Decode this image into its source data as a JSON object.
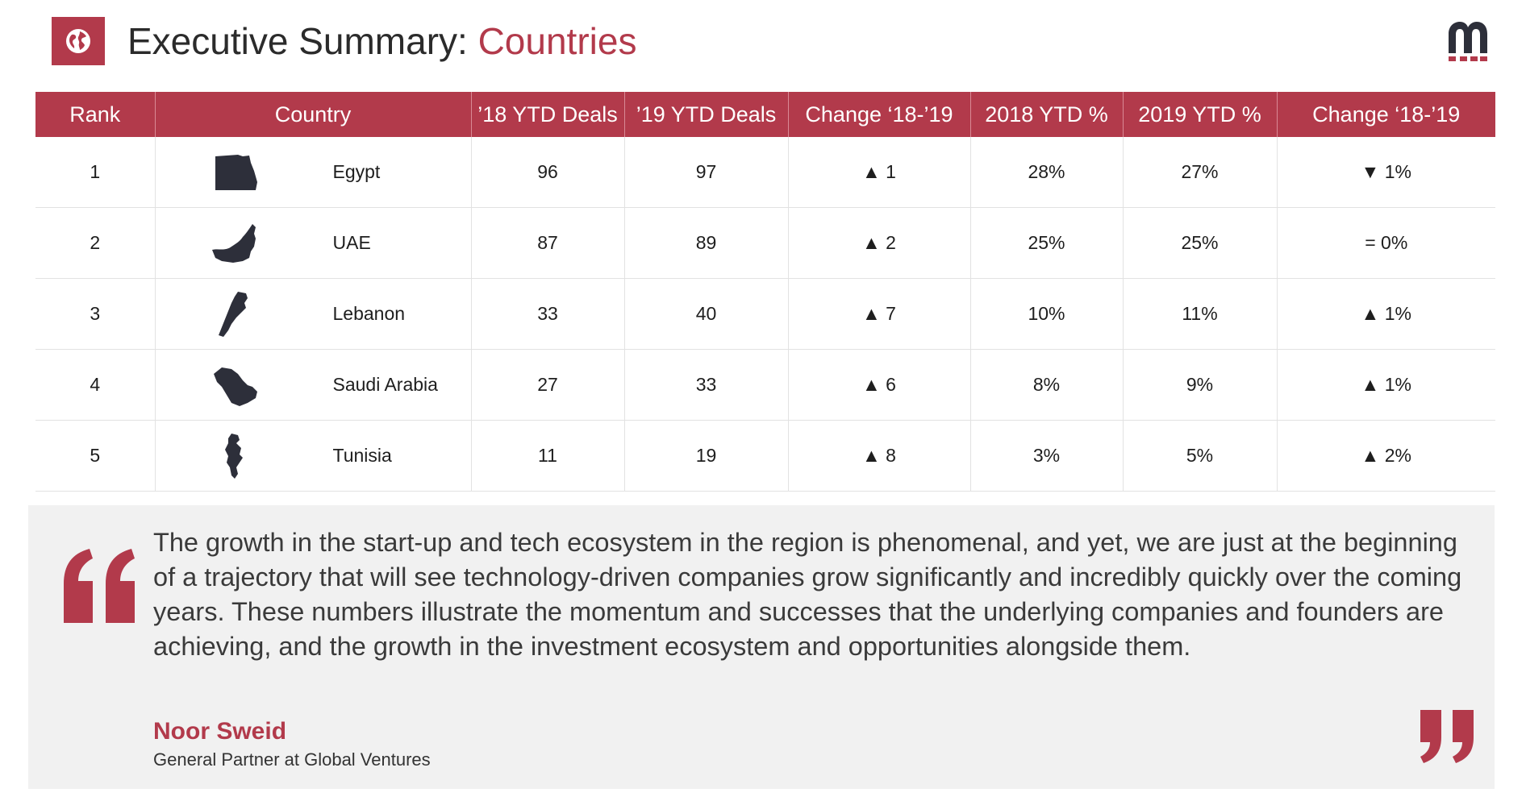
{
  "header": {
    "title_main": "Executive Summary: ",
    "title_accent": "Countries",
    "icon": "globe-icon",
    "accent_color": "#b23a4b"
  },
  "logo": {
    "icon": "brand-m-logo"
  },
  "table": {
    "columns": [
      "Rank",
      "Country",
      "’18 YTD Deals",
      "’19 YTD Deals",
      "Change ‘18-’19",
      "2018 YTD %",
      "2019 YTD %",
      "Change ‘18-’19"
    ],
    "rows": [
      {
        "rank": "1",
        "country": "Egypt",
        "map_icon": "egypt-map-icon",
        "deals18": "96",
        "deals19": "97",
        "change_deals": "▲ 1",
        "change_deals_dir": "up",
        "pct18": "28%",
        "pct19": "27%",
        "change_pct": "▼ 1%",
        "change_pct_dir": "down"
      },
      {
        "rank": "2",
        "country": "UAE",
        "map_icon": "uae-map-icon",
        "deals18": "87",
        "deals19": "89",
        "change_deals": "▲ 2",
        "change_deals_dir": "up",
        "pct18": "25%",
        "pct19": "25%",
        "change_pct": "= 0%",
        "change_pct_dir": "flat"
      },
      {
        "rank": "3",
        "country": "Lebanon",
        "map_icon": "lebanon-map-icon",
        "deals18": "33",
        "deals19": "40",
        "change_deals": "▲ 7",
        "change_deals_dir": "up",
        "pct18": "10%",
        "pct19": "11%",
        "change_pct": "▲ 1%",
        "change_pct_dir": "up"
      },
      {
        "rank": "4",
        "country": "Saudi Arabia",
        "map_icon": "saudi-arabia-map-icon",
        "deals18": "27",
        "deals19": "33",
        "change_deals": "▲ 6",
        "change_deals_dir": "up",
        "pct18": "8%",
        "pct19": "9%",
        "change_pct": "▲ 1%",
        "change_pct_dir": "up"
      },
      {
        "rank": "5",
        "country": "Tunisia",
        "map_icon": "tunisia-map-icon",
        "deals18": "11",
        "deals19": "19",
        "change_deals": "▲ 8",
        "change_deals_dir": "up",
        "pct18": "3%",
        "pct19": "5%",
        "change_pct": "▲ 2%",
        "change_pct_dir": "up"
      }
    ],
    "colors": {
      "up": "#3aa655",
      "down": "#d62b2b",
      "flat": "#f3b632"
    }
  },
  "quote": {
    "text": "The growth in the start-up and tech ecosystem in the region is phenomenal, and yet, we are just at the beginning of a trajectory that will see technology-driven companies grow significantly and incredibly quickly over the coming years. These numbers illustrate the momentum and successes that the underlying companies and founders are achieving, and the growth in the investment ecosystem and opportunities alongside them.",
    "author": "Noor Sweid",
    "role": "General Partner at Global Ventures",
    "open_icon": "open-quote-icon",
    "close_icon": "close-quote-icon"
  }
}
